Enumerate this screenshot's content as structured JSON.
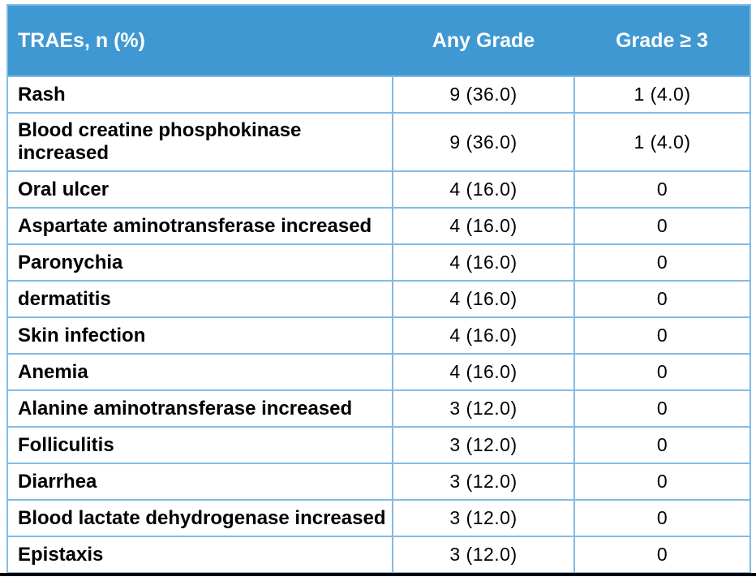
{
  "chart_data": {
    "type": "table",
    "title": "",
    "columns": [
      "TRAEs, n (%)",
      "Any Grade",
      "Grade ≥ 3"
    ],
    "rows": [
      {
        "trae": "Rash",
        "any_grade": "9 (36.0)",
        "grade_ge3": "1 (4.0)"
      },
      {
        "trae": "Blood creatine phosphokinase\nincreased",
        "any_grade": "9 (36.0)",
        "grade_ge3": "1 (4.0)"
      },
      {
        "trae": "Oral ulcer",
        "any_grade": "4 (16.0)",
        "grade_ge3": "0"
      },
      {
        "trae": "Aspartate aminotransferase increased",
        "any_grade": "4 (16.0)",
        "grade_ge3": "0"
      },
      {
        "trae": "Paronychia",
        "any_grade": "4 (16.0)",
        "grade_ge3": "0"
      },
      {
        "trae": "dermatitis",
        "any_grade": "4 (16.0)",
        "grade_ge3": "0"
      },
      {
        "trae": "Skin infection",
        "any_grade": "4 (16.0)",
        "grade_ge3": "0"
      },
      {
        "trae": "Anemia",
        "any_grade": "4 (16.0)",
        "grade_ge3": "0"
      },
      {
        "trae": "Alanine aminotransferase increased",
        "any_grade": "3 (12.0)",
        "grade_ge3": "0"
      },
      {
        "trae": "Folliculitis",
        "any_grade": "3 (12.0)",
        "grade_ge3": "0"
      },
      {
        "trae": "Diarrhea",
        "any_grade": "3 (12.0)",
        "grade_ge3": "0"
      },
      {
        "trae": "Blood lactate dehydrogenase increased",
        "any_grade": "3 (12.0)",
        "grade_ge3": "0"
      },
      {
        "trae": "Epistaxis",
        "any_grade": "3 (12.0)",
        "grade_ge3": "0"
      }
    ],
    "layout_hints": {
      "header_row": true,
      "vertical_dividers": false,
      "value_alignment": "center"
    }
  },
  "colors": {
    "header_bg": "#3F98D2",
    "header_text": "#FFFFFF",
    "row_border": "#82BBE6",
    "body_text": "#000000",
    "bottom_rule": "#000000"
  }
}
